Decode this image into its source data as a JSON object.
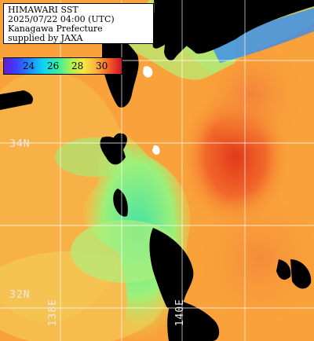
{
  "caption": {
    "lines": [
      "HIMAWARI SST",
      "2025/07/22 04:00 (UTC)",
      "Kanagawa Prefecture",
      "supplied by JAXA"
    ]
  },
  "colorbar": {
    "ticks": [
      "24",
      "26",
      "28",
      "30"
    ],
    "colors": [
      "#6a1bd0",
      "#3b3dff",
      "#1c8cff",
      "#12d4f0",
      "#35f0a0",
      "#b6f04c",
      "#f7e640",
      "#f8a83a",
      "#f05a23",
      "#d0102a"
    ]
  },
  "grid_labels": {
    "lat_34": "34N",
    "lat_32": "32N",
    "lon_138": "138E",
    "lon_140": "140E"
  },
  "colors": {
    "sea_warm": "#f9a13a",
    "sea_hot": "#f0571f",
    "sea_cool": "#8ff07a",
    "land": "#000000",
    "graticule": "#ffffff"
  }
}
